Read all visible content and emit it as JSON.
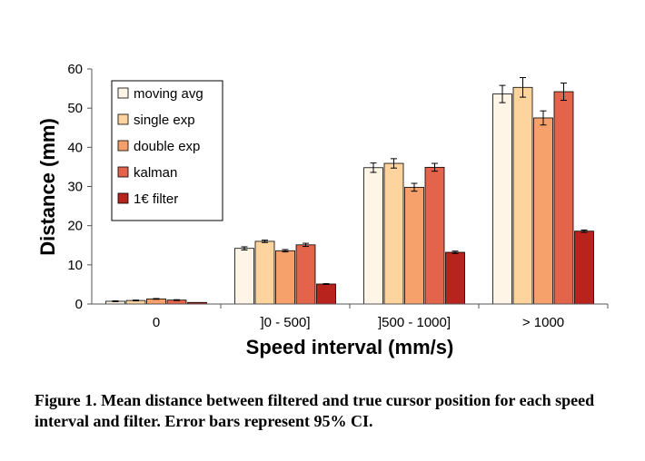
{
  "chart_data": {
    "type": "bar",
    "title": "",
    "xlabel": "Speed interval (mm/s)",
    "ylabel": "Distance (mm)",
    "ylim": [
      0,
      60
    ],
    "yticks": [
      0,
      10,
      20,
      30,
      40,
      50,
      60
    ],
    "grid": false,
    "legend_position": "top-left",
    "categories": [
      "0",
      "]0 - 500]",
      "]500 - 1000]",
      "> 1000"
    ],
    "series": [
      {
        "name": "moving avg",
        "color": "#fef5e7",
        "values": [
          0.7,
          14.2,
          34.8,
          53.6
        ],
        "ci": [
          0.1,
          0.4,
          1.2,
          2.2
        ]
      },
      {
        "name": "single exp",
        "color": "#fdd49e",
        "values": [
          0.9,
          16.0,
          35.9,
          55.3
        ],
        "ci": [
          0.1,
          0.3,
          1.2,
          2.5
        ]
      },
      {
        "name": "double exp",
        "color": "#f6a06c",
        "values": [
          1.3,
          13.6,
          29.8,
          47.5
        ],
        "ci": [
          0.1,
          0.3,
          1.0,
          1.8
        ]
      },
      {
        "name": "kalman",
        "color": "#e3634b",
        "values": [
          1.0,
          15.1,
          34.9,
          54.2
        ],
        "ci": [
          0.1,
          0.4,
          1.0,
          2.2
        ]
      },
      {
        "name": "1€ filter",
        "color": "#b9231d",
        "values": [
          0.4,
          5.1,
          13.2,
          18.6
        ],
        "ci": [
          0.0,
          0.1,
          0.3,
          0.3
        ]
      }
    ]
  },
  "caption": "Figure 1. Mean distance between filtered and true cursor position for each speed interval and filter. Error bars represent 95% CI."
}
